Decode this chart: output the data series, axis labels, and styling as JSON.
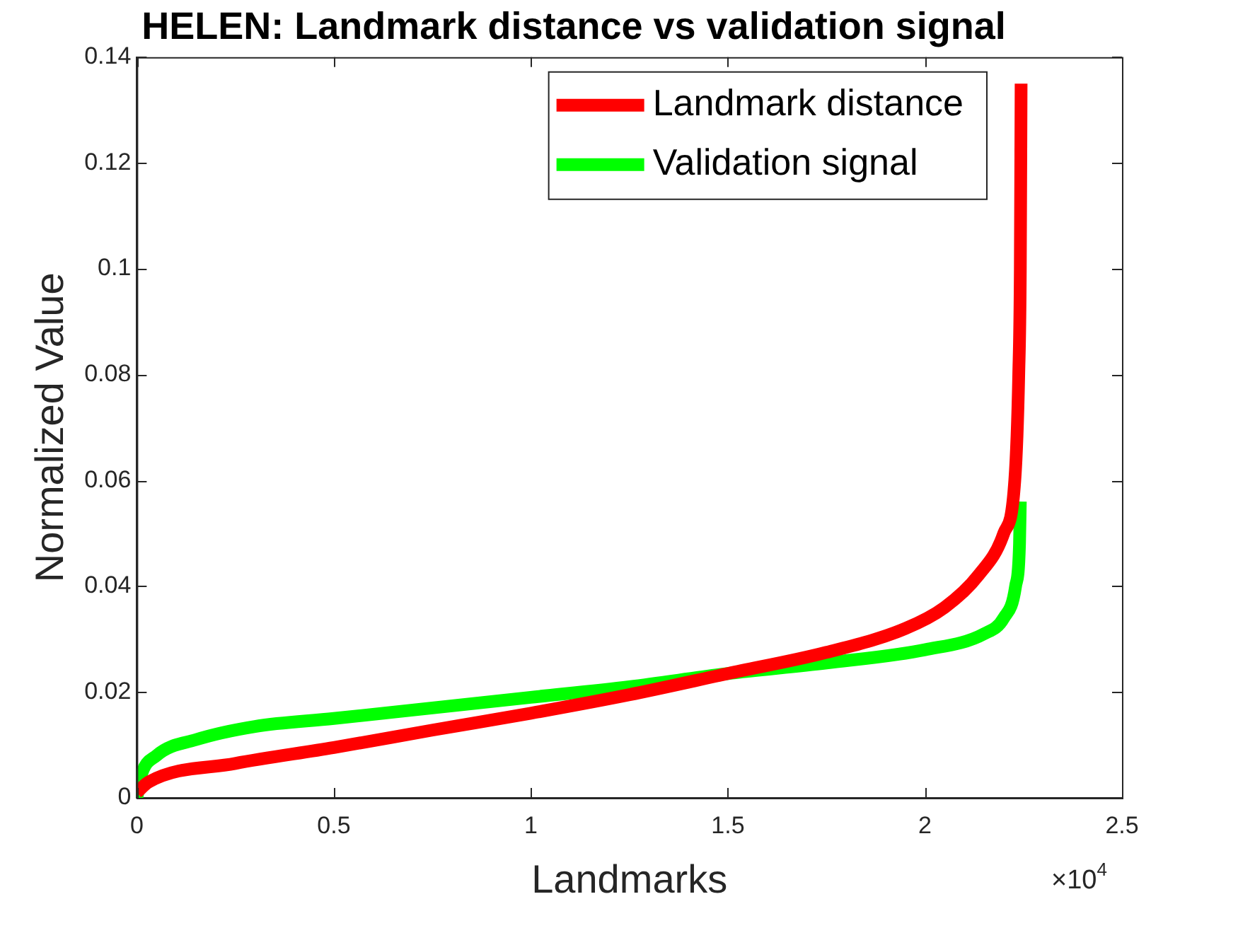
{
  "chart_data": {
    "type": "line",
    "title": "HELEN: Landmark distance vs validation signal",
    "xlabel": "Landmarks",
    "ylabel": "Normalized Value",
    "annotations": [
      "×10$^{4}$"
    ],
    "xlim": [
      0,
      2.5
    ],
    "xticks": [
      0,
      0.5,
      1,
      1.5,
      2,
      2.5
    ],
    "ylim": [
      0,
      0.14
    ],
    "yticks": [
      0,
      0.02,
      0.04,
      0.06,
      0.08,
      0.1,
      0.12,
      0.14
    ],
    "grid": false,
    "legend": "top right",
    "marker": "none",
    "line_style": "solid",
    "series": [
      {
        "name": "Landmark distance",
        "color": "#ff0000",
        "x": [
          0,
          0.03,
          0.25,
          0.5,
          0.75,
          1,
          1.25,
          1.5,
          1.75,
          1.95,
          2.05,
          2.135,
          2.2,
          2.228,
          2.238,
          2.242,
          2.244
        ],
        "values": [
          0.001,
          0.003,
          0.0065,
          0.0095,
          0.0128,
          0.016,
          0.0195,
          0.0235,
          0.0275,
          0.032,
          0.036,
          0.042,
          0.05,
          0.06,
          0.08,
          0.1,
          0.135
        ]
      },
      {
        "name": "Validation signal",
        "color": "#00ff00",
        "x": [
          0,
          0.01,
          0.05,
          0.15,
          0.3,
          0.5,
          0.75,
          1,
          1.25,
          1.5,
          1.75,
          2,
          2.15,
          2.2,
          2.23,
          2.24,
          2.242
        ],
        "values": [
          0,
          0.004,
          0.008,
          0.011,
          0.0135,
          0.015,
          0.017,
          0.019,
          0.021,
          0.0235,
          0.0255,
          0.028,
          0.031,
          0.034,
          0.04,
          0.048,
          0.056
        ]
      }
    ]
  }
}
